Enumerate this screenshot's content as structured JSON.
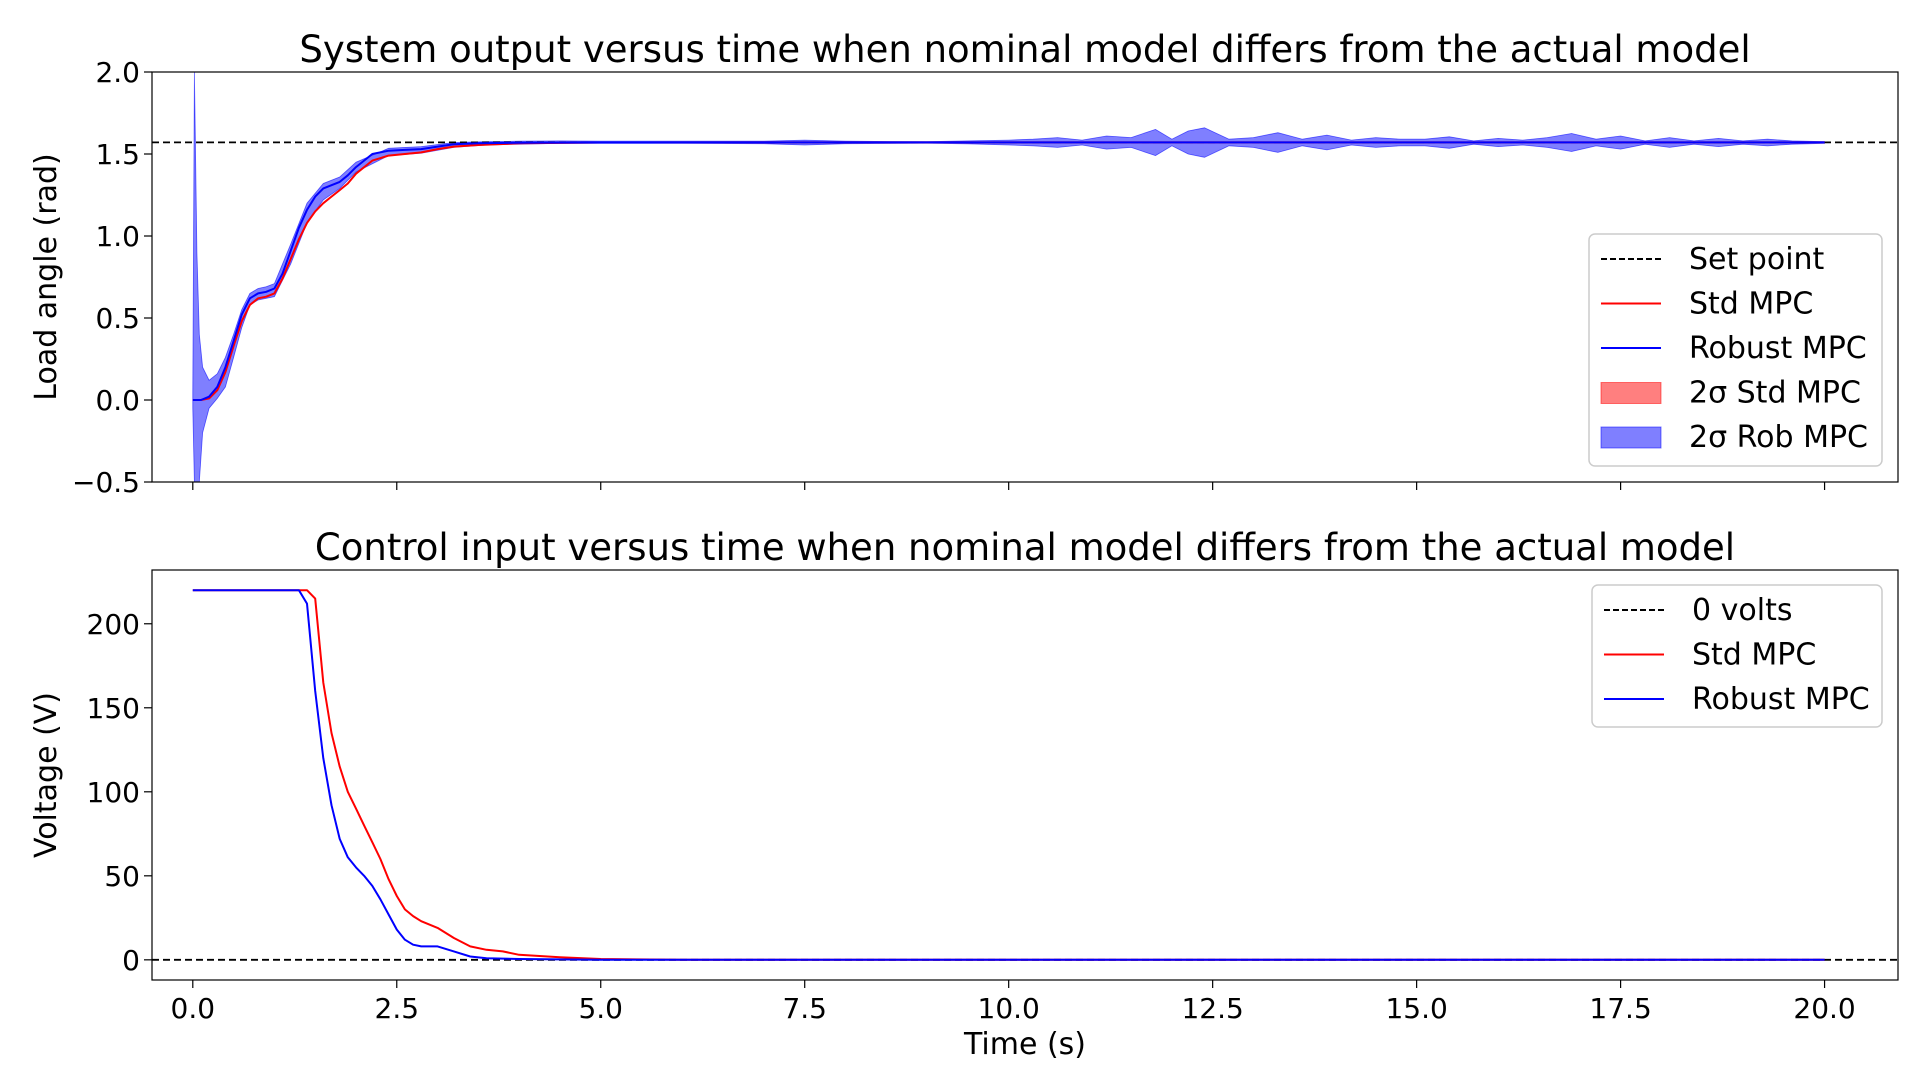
{
  "chart_data": [
    {
      "type": "line",
      "title": "System output versus time when nominal model differs from the actual model",
      "xlabel": "",
      "ylabel": "Load angle (rad)",
      "xlim": [
        -0.5,
        20.9
      ],
      "ylim": [
        -0.5,
        2.0
      ],
      "xticks": [
        0.0,
        2.5,
        5.0,
        7.5,
        10.0,
        12.5,
        15.0,
        17.5,
        20.0
      ],
      "xtick_labels": [
        "",
        "",
        "",
        "",
        "",
        "",
        "",
        "",
        ""
      ],
      "yticks": [
        -0.5,
        0.0,
        0.5,
        1.0,
        1.5,
        2.0
      ],
      "ytick_labels": [
        "−0.5",
        "0.0",
        "0.5",
        "1.0",
        "1.5",
        "2.0"
      ],
      "grid": false,
      "legend_position": "center-right",
      "legend": [
        {
          "label": "Set point",
          "kind": "dashed",
          "color": "#000000"
        },
        {
          "label": "Std MPC",
          "kind": "line",
          "color": "#ff0000"
        },
        {
          "label": "Robust MPC",
          "kind": "line",
          "color": "#0000ff"
        },
        {
          "label": "2σ Std MPC",
          "kind": "patch",
          "color": "#ff0000"
        },
        {
          "label": "2σ Rob MPC",
          "kind": "patch",
          "color": "#0000ff"
        }
      ],
      "hlines": [
        {
          "y": 1.5708,
          "style": "dashed",
          "color": "#000000"
        }
      ],
      "series": [
        {
          "name": "Std MPC",
          "color": "#ff0000",
          "x": [
            0.0,
            0.1,
            0.2,
            0.3,
            0.4,
            0.5,
            0.6,
            0.7,
            0.8,
            0.9,
            1.0,
            1.1,
            1.2,
            1.3,
            1.4,
            1.5,
            1.6,
            1.7,
            1.8,
            1.9,
            2.0,
            2.2,
            2.4,
            2.6,
            2.8,
            3.0,
            3.2,
            3.5,
            4.0,
            5.0,
            7.5,
            10.0,
            12.5,
            15.0,
            17.5,
            20.0
          ],
          "y": [
            0.0,
            0.0,
            0.01,
            0.06,
            0.17,
            0.33,
            0.48,
            0.58,
            0.62,
            0.63,
            0.65,
            0.74,
            0.86,
            0.98,
            1.08,
            1.15,
            1.2,
            1.24,
            1.28,
            1.32,
            1.38,
            1.46,
            1.49,
            1.5,
            1.51,
            1.53,
            1.545,
            1.555,
            1.565,
            1.57,
            1.5708,
            1.5708,
            1.5708,
            1.5708,
            1.5708,
            1.5708
          ]
        },
        {
          "name": "Robust MPC",
          "color": "#0000ff",
          "x": [
            0.0,
            0.1,
            0.2,
            0.3,
            0.4,
            0.5,
            0.6,
            0.7,
            0.8,
            0.9,
            1.0,
            1.1,
            1.2,
            1.3,
            1.4,
            1.5,
            1.6,
            1.7,
            1.8,
            1.9,
            2.0,
            2.2,
            2.4,
            2.6,
            2.8,
            3.0,
            3.2,
            3.5,
            4.0,
            5.0,
            7.5,
            10.0,
            12.5,
            15.0,
            17.5,
            20.0
          ],
          "y": [
            0.0,
            0.0,
            0.02,
            0.08,
            0.2,
            0.36,
            0.52,
            0.62,
            0.65,
            0.66,
            0.68,
            0.77,
            0.91,
            1.05,
            1.16,
            1.24,
            1.29,
            1.31,
            1.33,
            1.37,
            1.42,
            1.5,
            1.52,
            1.525,
            1.53,
            1.545,
            1.56,
            1.565,
            1.568,
            1.57,
            1.5708,
            1.5708,
            1.5708,
            1.5708,
            1.5708,
            1.5708
          ]
        }
      ],
      "bands": [
        {
          "name": "2σ Rob MPC",
          "color": "#0000ff",
          "opacity": 0.5,
          "x": [
            0.0,
            0.02,
            0.05,
            0.08,
            0.12,
            0.2,
            0.3,
            0.4,
            0.5,
            0.6,
            0.7,
            0.8,
            0.9,
            1.0,
            1.2,
            1.4,
            1.6,
            1.8,
            2.0,
            2.4,
            2.8,
            3.2,
            3.6,
            4.0,
            4.5,
            5.0,
            6.0,
            7.0,
            7.5,
            8.0,
            9.0,
            9.5,
            10.0,
            10.3,
            10.6,
            10.9,
            11.2,
            11.5,
            11.8,
            12.0,
            12.2,
            12.4,
            12.7,
            13.0,
            13.3,
            13.6,
            13.9,
            14.2,
            14.5,
            14.8,
            15.1,
            15.4,
            15.7,
            16.0,
            16.3,
            16.6,
            16.9,
            17.2,
            17.5,
            17.8,
            18.1,
            18.4,
            18.7,
            19.0,
            19.3,
            19.6,
            20.0
          ],
          "upper": [
            0.05,
            2.0,
            0.9,
            0.4,
            0.2,
            0.12,
            0.16,
            0.26,
            0.4,
            0.55,
            0.65,
            0.68,
            0.69,
            0.71,
            0.95,
            1.2,
            1.32,
            1.36,
            1.45,
            1.535,
            1.545,
            1.57,
            1.575,
            1.578,
            1.58,
            1.578,
            1.578,
            1.578,
            1.585,
            1.578,
            1.575,
            1.58,
            1.585,
            1.59,
            1.6,
            1.585,
            1.61,
            1.6,
            1.65,
            1.59,
            1.64,
            1.66,
            1.59,
            1.6,
            1.63,
            1.59,
            1.615,
            1.585,
            1.6,
            1.59,
            1.59,
            1.605,
            1.58,
            1.595,
            1.585,
            1.6,
            1.625,
            1.59,
            1.61,
            1.58,
            1.6,
            1.58,
            1.595,
            1.58,
            1.59,
            1.58,
            1.575
          ],
          "lower": [
            -0.05,
            -0.5,
            -0.5,
            -0.5,
            -0.2,
            -0.05,
            0.01,
            0.08,
            0.26,
            0.44,
            0.58,
            0.61,
            0.62,
            0.63,
            0.83,
            1.08,
            1.22,
            1.29,
            1.39,
            1.49,
            1.505,
            1.54,
            1.555,
            1.56,
            1.565,
            1.565,
            1.565,
            1.563,
            1.555,
            1.563,
            1.566,
            1.562,
            1.555,
            1.55,
            1.54,
            1.555,
            1.53,
            1.54,
            1.49,
            1.55,
            1.5,
            1.48,
            1.55,
            1.54,
            1.51,
            1.55,
            1.525,
            1.555,
            1.54,
            1.55,
            1.55,
            1.535,
            1.56,
            1.545,
            1.555,
            1.54,
            1.515,
            1.55,
            1.53,
            1.56,
            1.54,
            1.56,
            1.545,
            1.56,
            1.55,
            1.56,
            1.565
          ]
        }
      ]
    },
    {
      "type": "line",
      "title": "Control input versus time when nominal model differs from the actual model",
      "xlabel": "Time (s)",
      "ylabel": "Voltage (V)",
      "xlim": [
        -0.5,
        20.9
      ],
      "ylim": [
        -12,
        232
      ],
      "xticks": [
        0.0,
        2.5,
        5.0,
        7.5,
        10.0,
        12.5,
        15.0,
        17.5,
        20.0
      ],
      "xtick_labels": [
        "0.0",
        "2.5",
        "5.0",
        "7.5",
        "10.0",
        "12.5",
        "15.0",
        "17.5",
        "20.0"
      ],
      "yticks": [
        0,
        50,
        100,
        150,
        200
      ],
      "ytick_labels": [
        "0",
        "50",
        "100",
        "150",
        "200"
      ],
      "grid": false,
      "legend_position": "top-right",
      "legend": [
        {
          "label": "0 volts",
          "kind": "dashed",
          "color": "#000000"
        },
        {
          "label": "Std MPC",
          "kind": "line",
          "color": "#ff0000"
        },
        {
          "label": "Robust MPC",
          "kind": "line",
          "color": "#0000ff"
        }
      ],
      "hlines": [
        {
          "y": 0,
          "style": "dashed",
          "color": "#000000"
        }
      ],
      "series": [
        {
          "name": "Std MPC",
          "color": "#ff0000",
          "x": [
            0.0,
            1.4,
            1.5,
            1.6,
            1.7,
            1.8,
            1.9,
            2.0,
            2.1,
            2.2,
            2.3,
            2.4,
            2.5,
            2.6,
            2.7,
            2.8,
            3.0,
            3.2,
            3.4,
            3.6,
            3.8,
            4.0,
            4.5,
            5.0,
            6.0,
            10.0,
            20.0
          ],
          "y": [
            220,
            220,
            215,
            165,
            135,
            115,
            100,
            90,
            80,
            70,
            60,
            48,
            38,
            30,
            26,
            23,
            19,
            13,
            8,
            6,
            5,
            3,
            1.5,
            0.5,
            0,
            0,
            0
          ]
        },
        {
          "name": "Robust MPC",
          "color": "#0000ff",
          "x": [
            0.0,
            1.3,
            1.4,
            1.5,
            1.6,
            1.7,
            1.8,
            1.9,
            2.0,
            2.1,
            2.2,
            2.3,
            2.4,
            2.5,
            2.6,
            2.7,
            2.8,
            3.0,
            3.2,
            3.4,
            3.6,
            4.0,
            5.0,
            10.0,
            20.0
          ],
          "y": [
            220,
            220,
            212,
            160,
            120,
            92,
            72,
            61,
            55,
            50,
            44,
            36,
            27,
            18,
            12,
            9,
            8,
            8,
            5,
            2,
            1,
            0.5,
            0,
            0,
            0
          ]
        }
      ],
      "bands": []
    }
  ]
}
